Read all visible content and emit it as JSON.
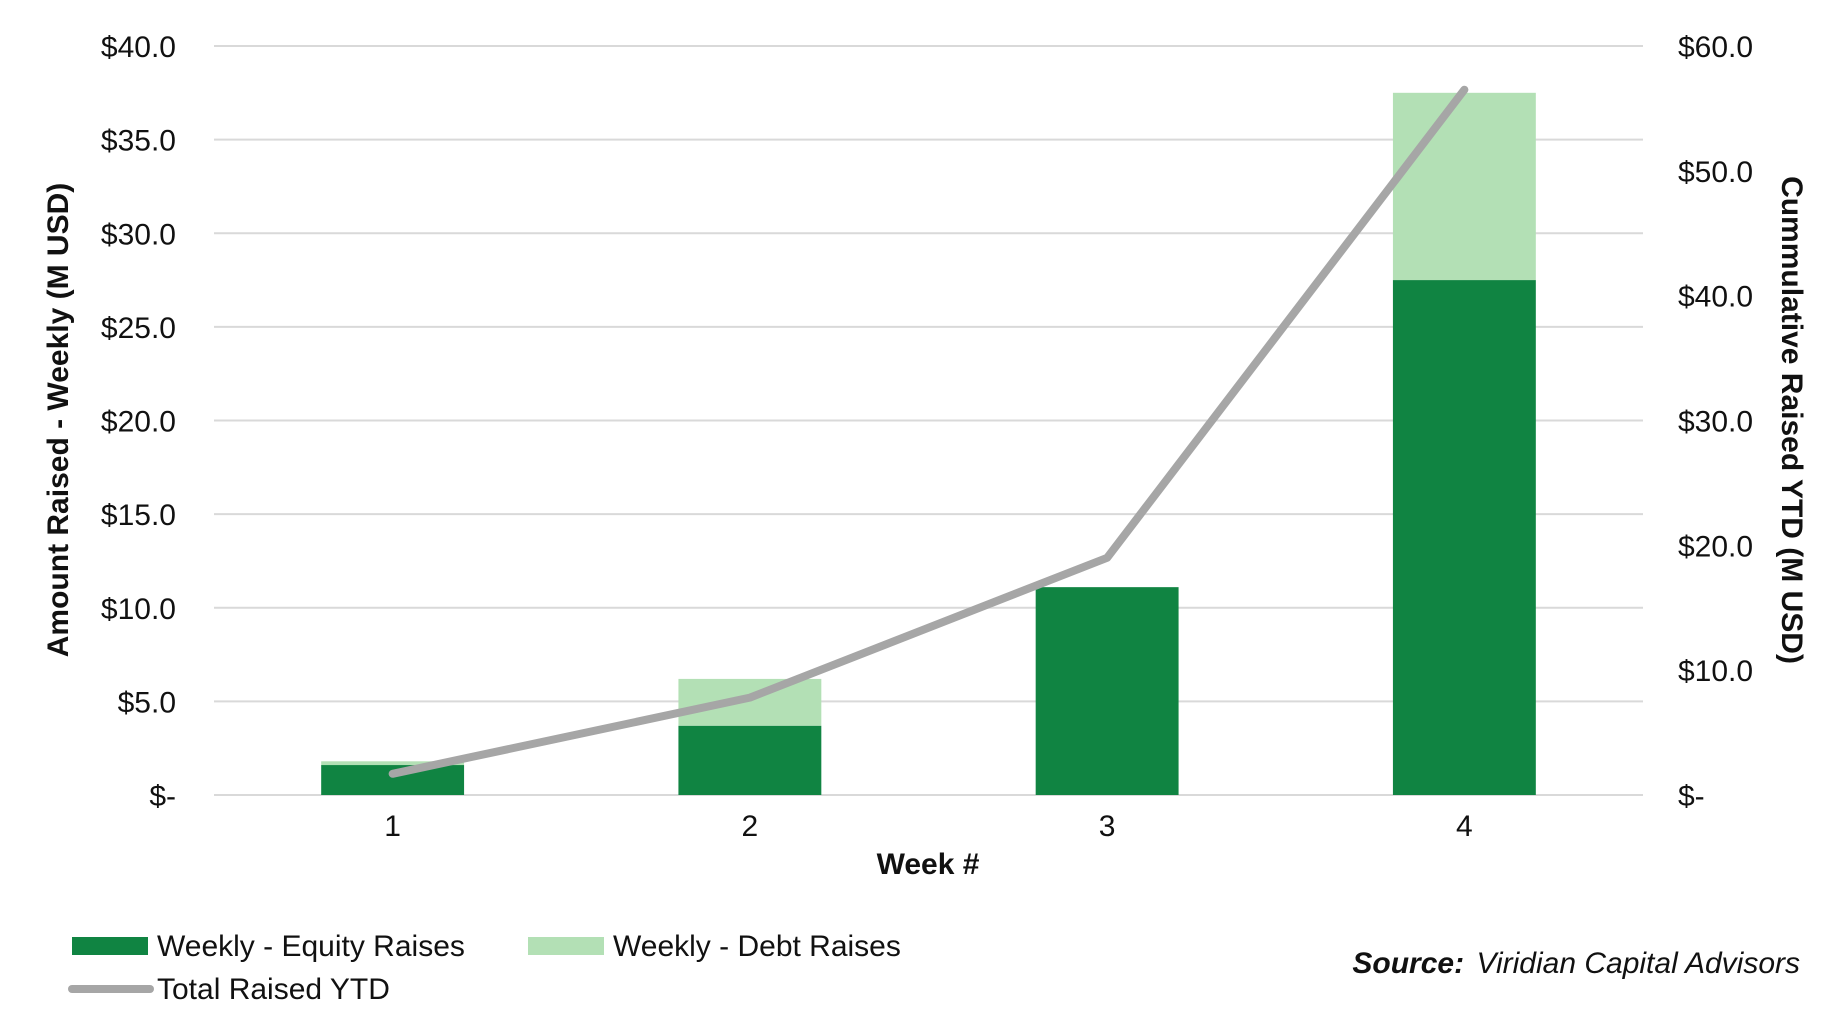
{
  "chart_data": {
    "type": "bar",
    "stacked": true,
    "categories": [
      "1",
      "2",
      "3",
      "4"
    ],
    "series": [
      {
        "name": "Weekly - Equity Raises",
        "type": "bar",
        "axis": "left",
        "color": "#108442",
        "values": [
          1.6,
          3.7,
          11.1,
          27.5
        ]
      },
      {
        "name": "Weekly - Debt Raises",
        "type": "bar",
        "axis": "left",
        "color": "#b3e0b5",
        "values": [
          0.2,
          2.5,
          0.0,
          10.0
        ]
      },
      {
        "name": "Total Raised YTD",
        "type": "line",
        "axis": "right",
        "color": "#a6a6a6",
        "values": [
          1.7,
          7.8,
          19.0,
          56.5
        ]
      }
    ],
    "xlabel": "Week #",
    "ylabel": "Amount Raised - Weekly (M USD)",
    "y2label": "Cummulative Raised YTD (M USD)",
    "ylim": [
      0,
      40
    ],
    "y2lim": [
      0,
      60
    ],
    "y_ticks": [
      {
        "value": 0,
        "label": "$-"
      },
      {
        "value": 5,
        "label": "$5.0"
      },
      {
        "value": 10,
        "label": "$10.0"
      },
      {
        "value": 15,
        "label": "$15.0"
      },
      {
        "value": 20,
        "label": "$20.0"
      },
      {
        "value": 25,
        "label": "$25.0"
      },
      {
        "value": 30,
        "label": "$30.0"
      },
      {
        "value": 35,
        "label": "$35.0"
      },
      {
        "value": 40,
        "label": "$40.0"
      }
    ],
    "y2_ticks": [
      {
        "value": 0,
        "label": "$-"
      },
      {
        "value": 10,
        "label": "$10.0"
      },
      {
        "value": 20,
        "label": "$20.0"
      },
      {
        "value": 30,
        "label": "$30.0"
      },
      {
        "value": 40,
        "label": "$40.0"
      },
      {
        "value": 50,
        "label": "$50.0"
      },
      {
        "value": 60,
        "label": "$60.0"
      }
    ],
    "grid": true,
    "legend_position": "bottom-left"
  },
  "source": {
    "label": "Source:",
    "text": "Viridian Capital Advisors"
  }
}
